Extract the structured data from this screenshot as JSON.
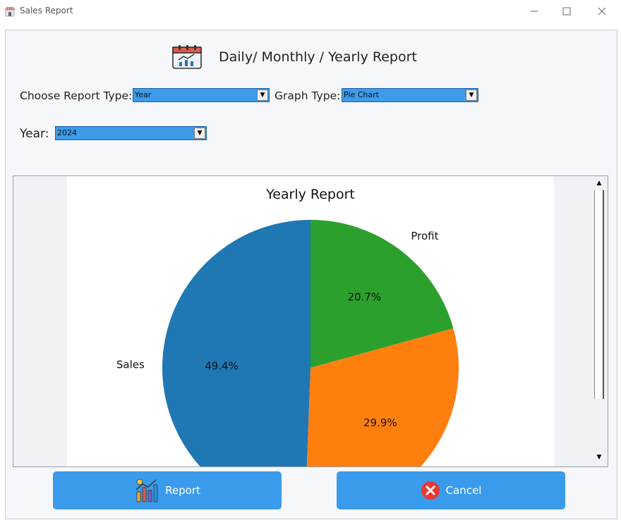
{
  "window": {
    "title": "Sales Report"
  },
  "header": {
    "title": "Daily/ Monthly / Yearly  Report"
  },
  "filters": {
    "report_type_label": "Choose Report Type:",
    "report_type_value": "Year",
    "graph_type_label": "Graph Type:",
    "graph_type_value": "Pie Chart",
    "year_label": "Year:",
    "year_value": "2024"
  },
  "chart_data": {
    "type": "pie",
    "title": "Yearly Report",
    "slices": [
      {
        "label": "Profit",
        "value": 20.7,
        "pct_label": "20.7%",
        "color": "#2ca02c"
      },
      {
        "label": "",
        "value": 29.9,
        "pct_label": "29.9%",
        "color": "#ff7f0e"
      },
      {
        "label": "Sales",
        "value": 49.4,
        "pct_label": "49.4%",
        "color": "#1f77b4"
      }
    ],
    "start_angle": "top, clockwise"
  },
  "buttons": {
    "report_label": "Report",
    "cancel_label": "Cancel"
  },
  "colors": {
    "button": "#3a9bec",
    "combo": "#3d9be9",
    "cancel_icon": "#e53935"
  }
}
